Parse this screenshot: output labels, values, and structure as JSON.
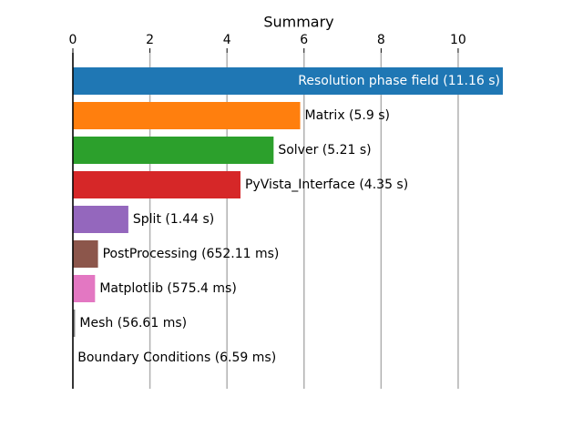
{
  "chart_data": {
    "type": "bar",
    "orientation": "horizontal",
    "title": "Summary",
    "values": [
      11.16,
      5.9,
      5.21,
      4.35,
      1.44,
      0.65211,
      0.5754,
      0.05661,
      0.00659
    ],
    "value_labels": [
      "Resolution phase field (11.16 s)",
      "Matrix (5.9 s)",
      "Solver (5.21 s)",
      "PyVista_Interface (4.35 s)",
      "Split (1.44 s)",
      "PostProcessing (652.11 ms)",
      "Matplotlib (575.4 ms)",
      "Mesh (56.61 ms)",
      "Boundary Conditions (6.59 ms)"
    ],
    "colors": [
      "#1f77b4",
      "#ff7f0e",
      "#2ca02c",
      "#d62728",
      "#9467bd",
      "#8c564b",
      "#e377c2",
      "#7f7f7f",
      "#bcbd22"
    ],
    "xlim": [
      0,
      11.16
    ],
    "xticks": [
      0,
      2,
      4,
      6,
      8,
      10
    ],
    "grid": true
  }
}
